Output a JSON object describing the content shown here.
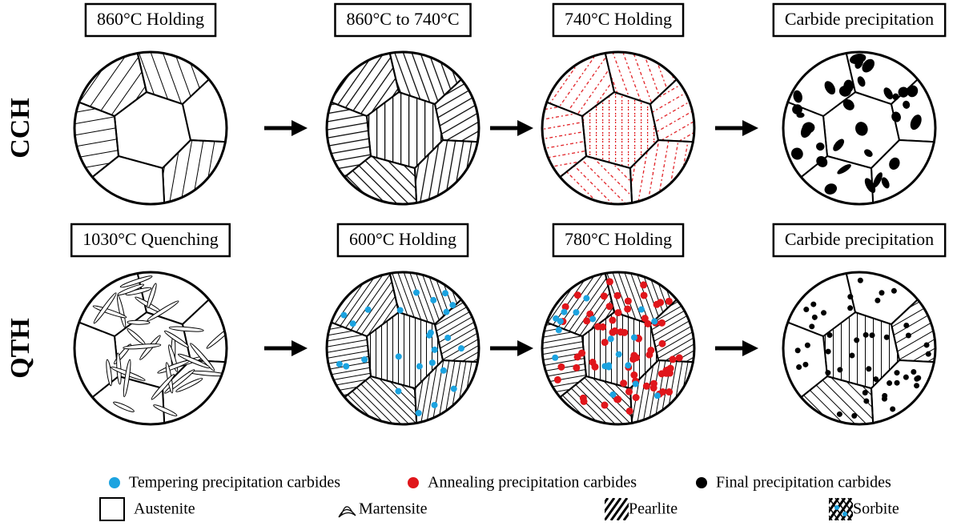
{
  "rows": [
    {
      "label": "CCH",
      "steps": [
        "860°C Holding",
        "860°C to 740°C",
        "740°C Holding",
        "Carbide precipitation"
      ]
    },
    {
      "label": "QTH",
      "steps": [
        "1030°C Quenching",
        "600°C Holding",
        "780°C Holding",
        "Carbide precipitation"
      ]
    }
  ],
  "legend": {
    "carbides": [
      "Tempering precipitation carbides",
      "Annealing precipitation carbides",
      "Final precipitation carbides"
    ],
    "phases": [
      "Austenite",
      "Martensite",
      "Pearlite",
      "Sorbite"
    ]
  }
}
